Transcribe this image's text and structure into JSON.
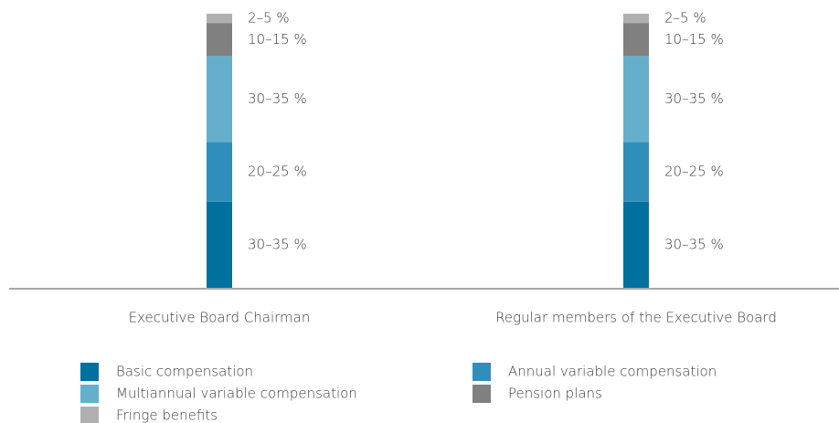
{
  "chart_data": {
    "type": "stacked_bar",
    "categories": [
      "Executive Board Chairman",
      "Regular members of the Executive Board"
    ],
    "series": [
      {
        "name": "Basic compensation",
        "color": "#00709f",
        "values": [
          32.5,
          32.5
        ],
        "value_labels": [
          "30–35 %",
          "30–35 %"
        ]
      },
      {
        "name": "Annual variable compensation",
        "color": "#2f8fba",
        "values": [
          22.5,
          22.5
        ],
        "value_labels": [
          "20–25 %",
          "20–25 %"
        ]
      },
      {
        "name": "Multiannual variable compensation",
        "color": "#66afcc",
        "values": [
          32.5,
          32.5
        ],
        "value_labels": [
          "30–35 %",
          "30–35 %"
        ]
      },
      {
        "name": "Pension plans",
        "color": "#808080",
        "values": [
          12.5,
          12.5
        ],
        "value_labels": [
          "10–15 %",
          "10–15 %"
        ]
      },
      {
        "name": "Fringe benefits",
        "color": "#b0b0b0",
        "values": [
          3.5,
          3.5
        ],
        "value_labels": [
          "2–5 %",
          "2–5 %"
        ]
      }
    ]
  }
}
